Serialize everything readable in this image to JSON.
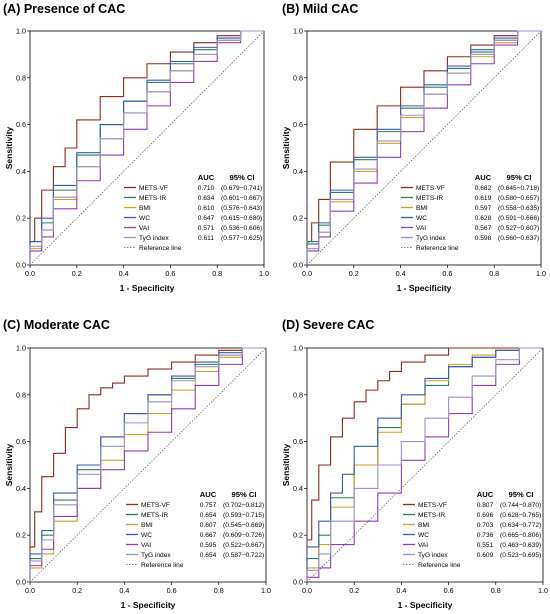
{
  "chart_data": [
    {
      "type": "line",
      "title": "(A) Presence of CAC",
      "xlabel": "1 - Specificity",
      "ylabel": "Sensitivity",
      "xlim": [
        0,
        1
      ],
      "ylim": [
        0,
        1
      ],
      "ticks": [
        "0.0",
        "0.2",
        "0.4",
        "0.6",
        "0.8",
        "1.0"
      ],
      "legend_header": {
        "auc": "AUC",
        "ci": "95% CI"
      },
      "legend_position": "bottom-right",
      "reference_label": "Reference line",
      "series": [
        {
          "name": "METS-VF",
          "auc": "0.710",
          "ci": "(0.679−0.741)",
          "color": "#8B2A1E",
          "x": [
            0,
            0.02,
            0.05,
            0.1,
            0.15,
            0.2,
            0.3,
            0.4,
            0.5,
            0.6,
            0.7,
            0.8,
            0.9,
            1.0
          ],
          "y": [
            0,
            0.1,
            0.2,
            0.32,
            0.42,
            0.5,
            0.62,
            0.72,
            0.8,
            0.86,
            0.91,
            0.95,
            0.98,
            1.0
          ]
        },
        {
          "name": "METS-IR",
          "auc": "0.634",
          "ci": "(0.601−0.667)",
          "color": "#2E7D5B",
          "x": [
            0,
            0.05,
            0.1,
            0.2,
            0.3,
            0.4,
            0.5,
            0.6,
            0.7,
            0.8,
            0.9,
            1.0
          ],
          "y": [
            0,
            0.1,
            0.18,
            0.32,
            0.47,
            0.6,
            0.7,
            0.78,
            0.86,
            0.92,
            0.97,
            1.0
          ]
        },
        {
          "name": "BMI",
          "auc": "0.610",
          "ci": "(0.576−0.643)",
          "color": "#C9A227",
          "x": [
            0,
            0.05,
            0.1,
            0.2,
            0.3,
            0.4,
            0.5,
            0.6,
            0.7,
            0.8,
            0.9,
            1.0
          ],
          "y": [
            0,
            0.07,
            0.15,
            0.28,
            0.42,
            0.54,
            0.65,
            0.74,
            0.83,
            0.9,
            0.96,
            1.0
          ]
        },
        {
          "name": "WC",
          "auc": "0.647",
          "ci": "(0.615−0.680)",
          "color": "#3B5BA9",
          "x": [
            0,
            0.05,
            0.1,
            0.2,
            0.3,
            0.4,
            0.5,
            0.6,
            0.7,
            0.8,
            0.9,
            1.0
          ],
          "y": [
            0,
            0.1,
            0.2,
            0.34,
            0.48,
            0.6,
            0.7,
            0.79,
            0.87,
            0.93,
            0.97,
            1.0
          ]
        },
        {
          "name": "VAI",
          "auc": "0.571",
          "ci": "(0.536−0.606)",
          "color": "#8E3FB0",
          "x": [
            0,
            0.05,
            0.1,
            0.2,
            0.3,
            0.4,
            0.5,
            0.6,
            0.7,
            0.8,
            0.9,
            1.0
          ],
          "y": [
            0,
            0.06,
            0.12,
            0.24,
            0.36,
            0.47,
            0.58,
            0.68,
            0.78,
            0.87,
            0.95,
            1.0
          ]
        },
        {
          "name": "TyG index",
          "auc": "0.611",
          "ci": "(0.577−0.625)",
          "color": "#9A93C6",
          "x": [
            0,
            0.05,
            0.1,
            0.2,
            0.3,
            0.4,
            0.5,
            0.6,
            0.7,
            0.8,
            0.9,
            1.0
          ],
          "y": [
            0,
            0.08,
            0.15,
            0.29,
            0.42,
            0.54,
            0.65,
            0.74,
            0.83,
            0.9,
            0.96,
            1.0
          ]
        }
      ]
    },
    {
      "type": "line",
      "title": "(B) Mild CAC",
      "xlabel": "1 - Specificity",
      "ylabel": "Sensitivity",
      "xlim": [
        0,
        1
      ],
      "ylim": [
        0,
        1
      ],
      "ticks": [
        "0.0",
        "0.2",
        "0.4",
        "0.6",
        "0.8",
        "1.0"
      ],
      "legend_header": {
        "auc": "AUC",
        "ci": "95% CI"
      },
      "legend_position": "bottom-right",
      "reference_label": "Reference line",
      "series": [
        {
          "name": "METS-VF",
          "auc": "0.682",
          "ci": "(0.645−0.718)",
          "color": "#8B2A1E",
          "x": [
            0,
            0.02,
            0.05,
            0.1,
            0.2,
            0.3,
            0.4,
            0.5,
            0.6,
            0.7,
            0.8,
            0.9,
            1.0
          ],
          "y": [
            0,
            0.1,
            0.18,
            0.28,
            0.44,
            0.58,
            0.68,
            0.76,
            0.83,
            0.89,
            0.94,
            0.98,
            1.0
          ]
        },
        {
          "name": "METS-IR",
          "auc": "0.619",
          "ci": "(0.580−0.657)",
          "color": "#2E7D5B",
          "x": [
            0,
            0.05,
            0.1,
            0.2,
            0.3,
            0.4,
            0.5,
            0.6,
            0.7,
            0.8,
            0.9,
            1.0
          ],
          "y": [
            0,
            0.1,
            0.17,
            0.31,
            0.45,
            0.57,
            0.67,
            0.76,
            0.84,
            0.91,
            0.96,
            1.0
          ]
        },
        {
          "name": "BMI",
          "auc": "0.597",
          "ci": "(0.558−0.635)",
          "color": "#C9A227",
          "x": [
            0,
            0.05,
            0.1,
            0.2,
            0.3,
            0.4,
            0.5,
            0.6,
            0.7,
            0.8,
            0.9,
            1.0
          ],
          "y": [
            0,
            0.07,
            0.14,
            0.27,
            0.4,
            0.52,
            0.63,
            0.73,
            0.82,
            0.89,
            0.95,
            1.0
          ]
        },
        {
          "name": "WC",
          "auc": "0.628",
          "ci": "(0.591−0.666)",
          "color": "#3B5BA9",
          "x": [
            0,
            0.05,
            0.1,
            0.2,
            0.3,
            0.4,
            0.5,
            0.6,
            0.7,
            0.8,
            0.9,
            1.0
          ],
          "y": [
            0,
            0.09,
            0.18,
            0.32,
            0.46,
            0.58,
            0.68,
            0.77,
            0.85,
            0.92,
            0.97,
            1.0
          ]
        },
        {
          "name": "VAI",
          "auc": "0.567",
          "ci": "(0.527−0.607)",
          "color": "#8E3FB0",
          "x": [
            0,
            0.05,
            0.1,
            0.2,
            0.3,
            0.4,
            0.5,
            0.6,
            0.7,
            0.8,
            0.9,
            1.0
          ],
          "y": [
            0,
            0.06,
            0.12,
            0.23,
            0.35,
            0.46,
            0.57,
            0.67,
            0.77,
            0.86,
            0.94,
            1.0
          ]
        },
        {
          "name": "TyG index",
          "auc": "0.598",
          "ci": "(0.560−0.637)",
          "color": "#9A93C6",
          "x": [
            0,
            0.05,
            0.1,
            0.2,
            0.3,
            0.4,
            0.5,
            0.6,
            0.7,
            0.8,
            0.9,
            1.0
          ],
          "y": [
            0,
            0.07,
            0.14,
            0.28,
            0.41,
            0.53,
            0.64,
            0.73,
            0.82,
            0.9,
            0.96,
            1.0
          ]
        }
      ]
    },
    {
      "type": "line",
      "title": "(C) Moderate CAC",
      "xlabel": "1 - Specificity",
      "ylabel": "Sensitivity",
      "xlim": [
        0,
        1
      ],
      "ylim": [
        0,
        1
      ],
      "ticks": [
        "0.0",
        "0.2",
        "0.4",
        "0.6",
        "0.8",
        "1.0"
      ],
      "legend_header": {
        "auc": "AUC",
        "ci": "95% CI"
      },
      "legend_position": "bottom-right",
      "reference_label": "Reference line",
      "series": [
        {
          "name": "METS-VF",
          "auc": "0.757",
          "ci": "(0.702−0.812)",
          "color": "#8B2A1E",
          "x": [
            0,
            0.02,
            0.05,
            0.1,
            0.15,
            0.2,
            0.25,
            0.3,
            0.35,
            0.4,
            0.5,
            0.6,
            0.7,
            0.8,
            0.9,
            1.0
          ],
          "y": [
            0,
            0.15,
            0.3,
            0.45,
            0.55,
            0.66,
            0.74,
            0.8,
            0.83,
            0.85,
            0.88,
            0.91,
            0.94,
            0.97,
            0.99,
            1.0
          ]
        },
        {
          "name": "METS-IR",
          "auc": "0.654",
          "ci": "(0.593−0.715)",
          "color": "#2E7D5B",
          "x": [
            0,
            0.05,
            0.1,
            0.2,
            0.3,
            0.4,
            0.5,
            0.6,
            0.7,
            0.8,
            0.9,
            1.0
          ],
          "y": [
            0,
            0.1,
            0.2,
            0.35,
            0.48,
            0.62,
            0.72,
            0.8,
            0.87,
            0.93,
            0.97,
            1.0
          ]
        },
        {
          "name": "BMI",
          "auc": "0.607",
          "ci": "(0.545−0.669)",
          "color": "#C9A227",
          "x": [
            0,
            0.05,
            0.1,
            0.2,
            0.3,
            0.4,
            0.5,
            0.6,
            0.7,
            0.8,
            0.9,
            1.0
          ],
          "y": [
            0,
            0.06,
            0.12,
            0.26,
            0.4,
            0.52,
            0.63,
            0.72,
            0.82,
            0.9,
            0.96,
            1.0
          ]
        },
        {
          "name": "WC",
          "auc": "0.667",
          "ci": "(0.609−0.726)",
          "color": "#3B5BA9",
          "x": [
            0,
            0.05,
            0.1,
            0.2,
            0.3,
            0.4,
            0.5,
            0.6,
            0.7,
            0.8,
            0.9,
            1.0
          ],
          "y": [
            0,
            0.12,
            0.22,
            0.38,
            0.5,
            0.62,
            0.72,
            0.8,
            0.88,
            0.94,
            0.98,
            1.0
          ]
        },
        {
          "name": "VAI",
          "auc": "0.595",
          "ci": "(0.522−0.667)",
          "color": "#8E3FB0",
          "x": [
            0,
            0.05,
            0.1,
            0.2,
            0.3,
            0.4,
            0.5,
            0.6,
            0.7,
            0.8,
            0.9,
            1.0
          ],
          "y": [
            0,
            0.07,
            0.14,
            0.28,
            0.4,
            0.48,
            0.56,
            0.64,
            0.74,
            0.84,
            0.93,
            1.0
          ]
        },
        {
          "name": "TyG index",
          "auc": "0.654",
          "ci": "(0.587−0.722)",
          "color": "#9A93C6",
          "x": [
            0,
            0.05,
            0.1,
            0.2,
            0.3,
            0.4,
            0.5,
            0.6,
            0.7,
            0.8,
            0.9,
            1.0
          ],
          "y": [
            0,
            0.09,
            0.18,
            0.33,
            0.46,
            0.58,
            0.68,
            0.77,
            0.86,
            0.92,
            0.97,
            1.0
          ]
        }
      ]
    },
    {
      "type": "line",
      "title": "(D) Severe CAC",
      "xlabel": "1 - Specificity",
      "ylabel": "Sensitivity",
      "xlim": [
        0,
        1
      ],
      "ylim": [
        0,
        1
      ],
      "ticks": [
        "0.0",
        "0.2",
        "0.4",
        "0.6",
        "0.8",
        "1.0"
      ],
      "legend_header": {
        "auc": "AUC",
        "ci": "95% CI"
      },
      "legend_position": "bottom-right",
      "reference_label": "Reference line",
      "series": [
        {
          "name": "METS-VF",
          "auc": "0.807",
          "ci": "(0.744−0.870)",
          "color": "#8B2A1E",
          "x": [
            0,
            0.02,
            0.05,
            0.1,
            0.15,
            0.2,
            0.25,
            0.3,
            0.35,
            0.4,
            0.5,
            0.6,
            0.7,
            0.8,
            1.0
          ],
          "y": [
            0,
            0.18,
            0.35,
            0.5,
            0.62,
            0.7,
            0.77,
            0.82,
            0.86,
            0.9,
            0.94,
            0.97,
            1.0,
            1.0,
            1.0
          ]
        },
        {
          "name": "METS-IR",
          "auc": "0.696",
          "ci": "(0.628−0.765)",
          "color": "#2E7D5B",
          "x": [
            0,
            0.05,
            0.1,
            0.2,
            0.3,
            0.4,
            0.5,
            0.6,
            0.7,
            0.8,
            0.9,
            1.0
          ],
          "y": [
            0,
            0.1,
            0.2,
            0.36,
            0.5,
            0.66,
            0.76,
            0.84,
            0.92,
            0.96,
            0.99,
            1.0
          ]
        },
        {
          "name": "BMI",
          "auc": "0.703",
          "ci": "(0.634−0.772)",
          "color": "#C9A227",
          "x": [
            0,
            0.05,
            0.1,
            0.2,
            0.3,
            0.4,
            0.5,
            0.6,
            0.7,
            0.8,
            0.9,
            1.0
          ],
          "y": [
            0,
            0.06,
            0.16,
            0.32,
            0.5,
            0.64,
            0.76,
            0.86,
            0.93,
            0.97,
            0.99,
            1.0
          ]
        },
        {
          "name": "WC",
          "auc": "0.736",
          "ci": "(0.665−0.806)",
          "color": "#3B5BA9",
          "x": [
            0,
            0.05,
            0.1,
            0.15,
            0.2,
            0.3,
            0.4,
            0.5,
            0.6,
            0.7,
            0.8,
            0.9,
            1.0
          ],
          "y": [
            0,
            0.15,
            0.26,
            0.38,
            0.46,
            0.58,
            0.7,
            0.8,
            0.87,
            0.92,
            0.96,
            0.99,
            1.0
          ]
        },
        {
          "name": "VAI",
          "auc": "0.551",
          "ci": "(0.463−0.639)",
          "color": "#8E3FB0",
          "x": [
            0,
            0.05,
            0.1,
            0.2,
            0.3,
            0.4,
            0.5,
            0.6,
            0.7,
            0.8,
            0.9,
            1.0
          ],
          "y": [
            0,
            0.02,
            0.06,
            0.16,
            0.26,
            0.38,
            0.52,
            0.62,
            0.72,
            0.84,
            0.93,
            1.0
          ]
        },
        {
          "name": "TyG index",
          "auc": "0.609",
          "ci": "(0.523−0.695)",
          "color": "#9A93C6",
          "x": [
            0,
            0.05,
            0.1,
            0.2,
            0.3,
            0.4,
            0.5,
            0.6,
            0.7,
            0.8,
            0.9,
            1.0
          ],
          "y": [
            0,
            0.05,
            0.12,
            0.26,
            0.4,
            0.5,
            0.6,
            0.7,
            0.79,
            0.88,
            0.95,
            1.0
          ]
        }
      ]
    }
  ]
}
